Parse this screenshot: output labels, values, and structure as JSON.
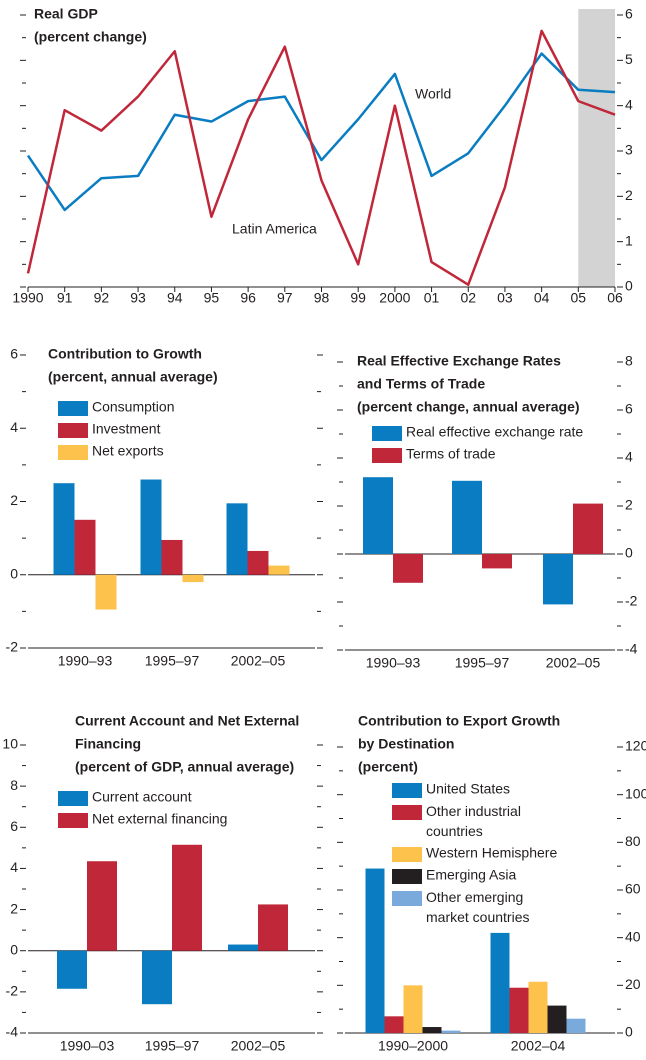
{
  "chart_data": [
    {
      "type": "line",
      "title": [
        "Real GDP"
      ],
      "subtitle": "(percent change)",
      "categories": [
        "1990",
        "91",
        "92",
        "93",
        "94",
        "95",
        "96",
        "97",
        "98",
        "99",
        "2000",
        "01",
        "02",
        "03",
        "04",
        "05",
        "06"
      ],
      "series": [
        {
          "name": "World",
          "color": "#0a7dc2",
          "values": [
            2.9,
            1.7,
            2.4,
            2.45,
            3.8,
            3.65,
            4.1,
            4.2,
            2.8,
            3.7,
            4.7,
            2.45,
            2.95,
            4.0,
            5.15,
            4.35,
            4.3
          ]
        },
        {
          "name": "Latin America",
          "color": "#c0283a",
          "values": [
            0.3,
            3.9,
            3.45,
            4.2,
            5.2,
            1.55,
            3.7,
            5.3,
            2.35,
            0.5,
            4.0,
            0.55,
            0.05,
            2.2,
            5.65,
            4.1,
            3.8
          ]
        }
      ],
      "ylim": [
        0,
        6
      ],
      "yticks": [
        0,
        1,
        2,
        3,
        4,
        5,
        6
      ],
      "axis_side": "right",
      "shaded": {
        "from": 15,
        "to": 16,
        "color": "#d3d3d3"
      }
    },
    {
      "type": "bar",
      "title": [
        "Contribution to Growth"
      ],
      "subtitle": "(percent, annual average)",
      "categories": [
        "1990–93",
        "1995–97",
        "2002–05"
      ],
      "series": [
        {
          "name": "Consumption",
          "color": "#0a7dc2",
          "values": [
            2.5,
            2.6,
            1.95
          ]
        },
        {
          "name": "Investment",
          "color": "#c0283a",
          "values": [
            1.5,
            0.95,
            0.65
          ]
        },
        {
          "name": "Net exports",
          "color": "#fcc24c",
          "values": [
            -0.95,
            -0.2,
            0.25
          ]
        }
      ],
      "ylim": [
        -2,
        6
      ],
      "yticks": [
        -2,
        0,
        2,
        4,
        6
      ],
      "axis_side": "left"
    },
    {
      "type": "bar",
      "title": [
        "Real Effective Exchange Rates",
        "and Terms of Trade"
      ],
      "subtitle": "(percent change, annual average)",
      "categories": [
        "1990–93",
        "1995–97",
        "2002–05"
      ],
      "series": [
        {
          "name": "Real effective exchange rate",
          "color": "#0a7dc2",
          "values": [
            3.2,
            3.05,
            -2.1
          ]
        },
        {
          "name": "Terms of trade",
          "color": "#c0283a",
          "values": [
            -1.2,
            -0.6,
            2.1
          ]
        }
      ],
      "ylim": [
        -4,
        8
      ],
      "yticks": [
        -4,
        -2,
        0,
        2,
        4,
        6,
        8
      ],
      "axis_side": "right"
    },
    {
      "type": "bar",
      "title": [
        "Current Account and Net External",
        "Financing"
      ],
      "subtitle": "(percent of GDP, annual average)",
      "categories": [
        "1990–03",
        "1995–97",
        "2002–05"
      ],
      "series": [
        {
          "name": "Current account",
          "color": "#0a7dc2",
          "values": [
            -1.85,
            -2.6,
            0.3
          ]
        },
        {
          "name": "Net external financing",
          "color": "#c0283a",
          "values": [
            4.35,
            5.15,
            2.25
          ]
        }
      ],
      "ylim": [
        -4,
        10
      ],
      "yticks": [
        -4,
        -2,
        0,
        2,
        4,
        6,
        8,
        10
      ],
      "axis_side": "left"
    },
    {
      "type": "bar",
      "title": [
        "Contribution to Export Growth",
        "by Destination"
      ],
      "subtitle": "(percent)",
      "categories": [
        "1990–2000",
        "2002–04"
      ],
      "series": [
        {
          "name": "United States",
          "color": "#0a7dc2",
          "values": [
            69,
            42
          ]
        },
        {
          "name": "Other industrial countries",
          "color": "#c0283a",
          "values": [
            7,
            19
          ]
        },
        {
          "name": "Western Hemisphere",
          "color": "#fcc24c",
          "values": [
            20,
            21.5
          ]
        },
        {
          "name": "Emerging Asia",
          "color": "#231f20",
          "values": [
            2.5,
            11.5
          ]
        },
        {
          "name": "Other emerging market countries",
          "color": "#7aa9dc",
          "values": [
            1,
            6
          ]
        }
      ],
      "ylim": [
        0,
        120
      ],
      "yticks": [
        0,
        20,
        40,
        60,
        80,
        100,
        120
      ],
      "axis_side": "right"
    }
  ]
}
